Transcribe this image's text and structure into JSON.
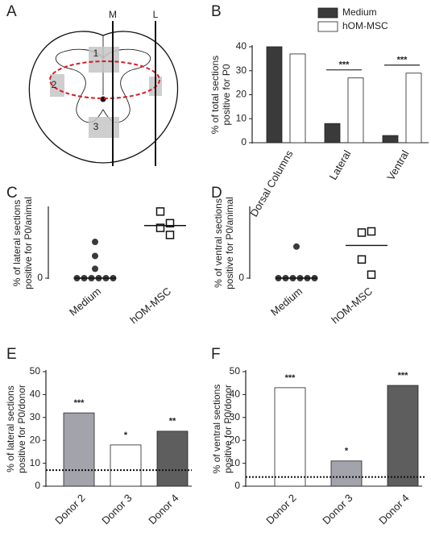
{
  "diagram": {
    "panel": "A",
    "lines": [
      "M",
      "L"
    ],
    "regions": [
      "1",
      "2",
      "3"
    ]
  },
  "chart_data": [
    {
      "type": "grouped_bar",
      "panel": "B",
      "ylabel": [
        "% of total sections",
        "positive for P0"
      ],
      "categories": [
        "Dorsal Columns",
        "Lateral",
        "Ventral"
      ],
      "series": [
        {
          "name": "Medium",
          "color": "#3a3a3a",
          "values": [
            40,
            8,
            3
          ]
        },
        {
          "name": "hOM-MSC",
          "color": "#ffffff",
          "values": [
            37,
            27,
            29
          ]
        }
      ],
      "significance": [
        null,
        "***",
        "***"
      ],
      "ylim": [
        0,
        40
      ],
      "yticks": [
        0,
        10,
        20,
        30,
        40
      ]
    },
    {
      "type": "dot",
      "panel": "C",
      "ylabel": [
        "% of lateral sections",
        "positive for P0/animal"
      ],
      "categories": [
        "Medium",
        "hOM-MSC"
      ],
      "markers": [
        "circle",
        "square"
      ],
      "values": [
        [
          31,
          19,
          8,
          0,
          0,
          0,
          0,
          0,
          0
        ],
        [
          57,
          47,
          43,
          37
        ]
      ],
      "medians": [
        0,
        45
      ],
      "ylim": [
        0,
        60
      ],
      "yticks": [
        0
      ]
    },
    {
      "type": "dot",
      "panel": "D",
      "ylabel": [
        "% of ventral sections",
        "positive for P0/animal"
      ],
      "categories": [
        "Medium",
        "hOM-MSC"
      ],
      "markers": [
        "circle",
        "square"
      ],
      "values": [
        [
          27,
          0,
          0,
          0,
          0,
          0,
          0
        ],
        [
          39,
          40,
          16,
          3
        ]
      ],
      "medians": [
        0,
        28
      ],
      "ylim": [
        0,
        60
      ],
      "yticks": [
        0
      ]
    },
    {
      "type": "bar",
      "panel": "E",
      "ylabel": [
        "% of lateral sections",
        "positive for P0/donor"
      ],
      "categories": [
        "Donor 2",
        "Donor 3",
        "Donor 4"
      ],
      "values": [
        32,
        18,
        24
      ],
      "colors": [
        "#a3a3ab",
        "#ffffff",
        "#5e5e5e"
      ],
      "significance": [
        "***",
        "*",
        "**"
      ],
      "reference_line": 7,
      "ylim": [
        0,
        50
      ],
      "yticks": [
        0,
        10,
        20,
        30,
        40,
        50
      ]
    },
    {
      "type": "bar",
      "panel": "F",
      "ylabel": [
        "% of ventral sections",
        "positive for P0/donor"
      ],
      "categories": [
        "Donor 2",
        "Donor 3",
        "Donor 4"
      ],
      "values": [
        43,
        11,
        44
      ],
      "colors": [
        "#ffffff",
        "#a3a3ab",
        "#5e5e5e"
      ],
      "significance": [
        "***",
        "*",
        "***"
      ],
      "reference_line": 4,
      "ylim": [
        0,
        50
      ],
      "yticks": [
        0,
        10,
        20,
        30,
        40,
        50
      ]
    }
  ]
}
